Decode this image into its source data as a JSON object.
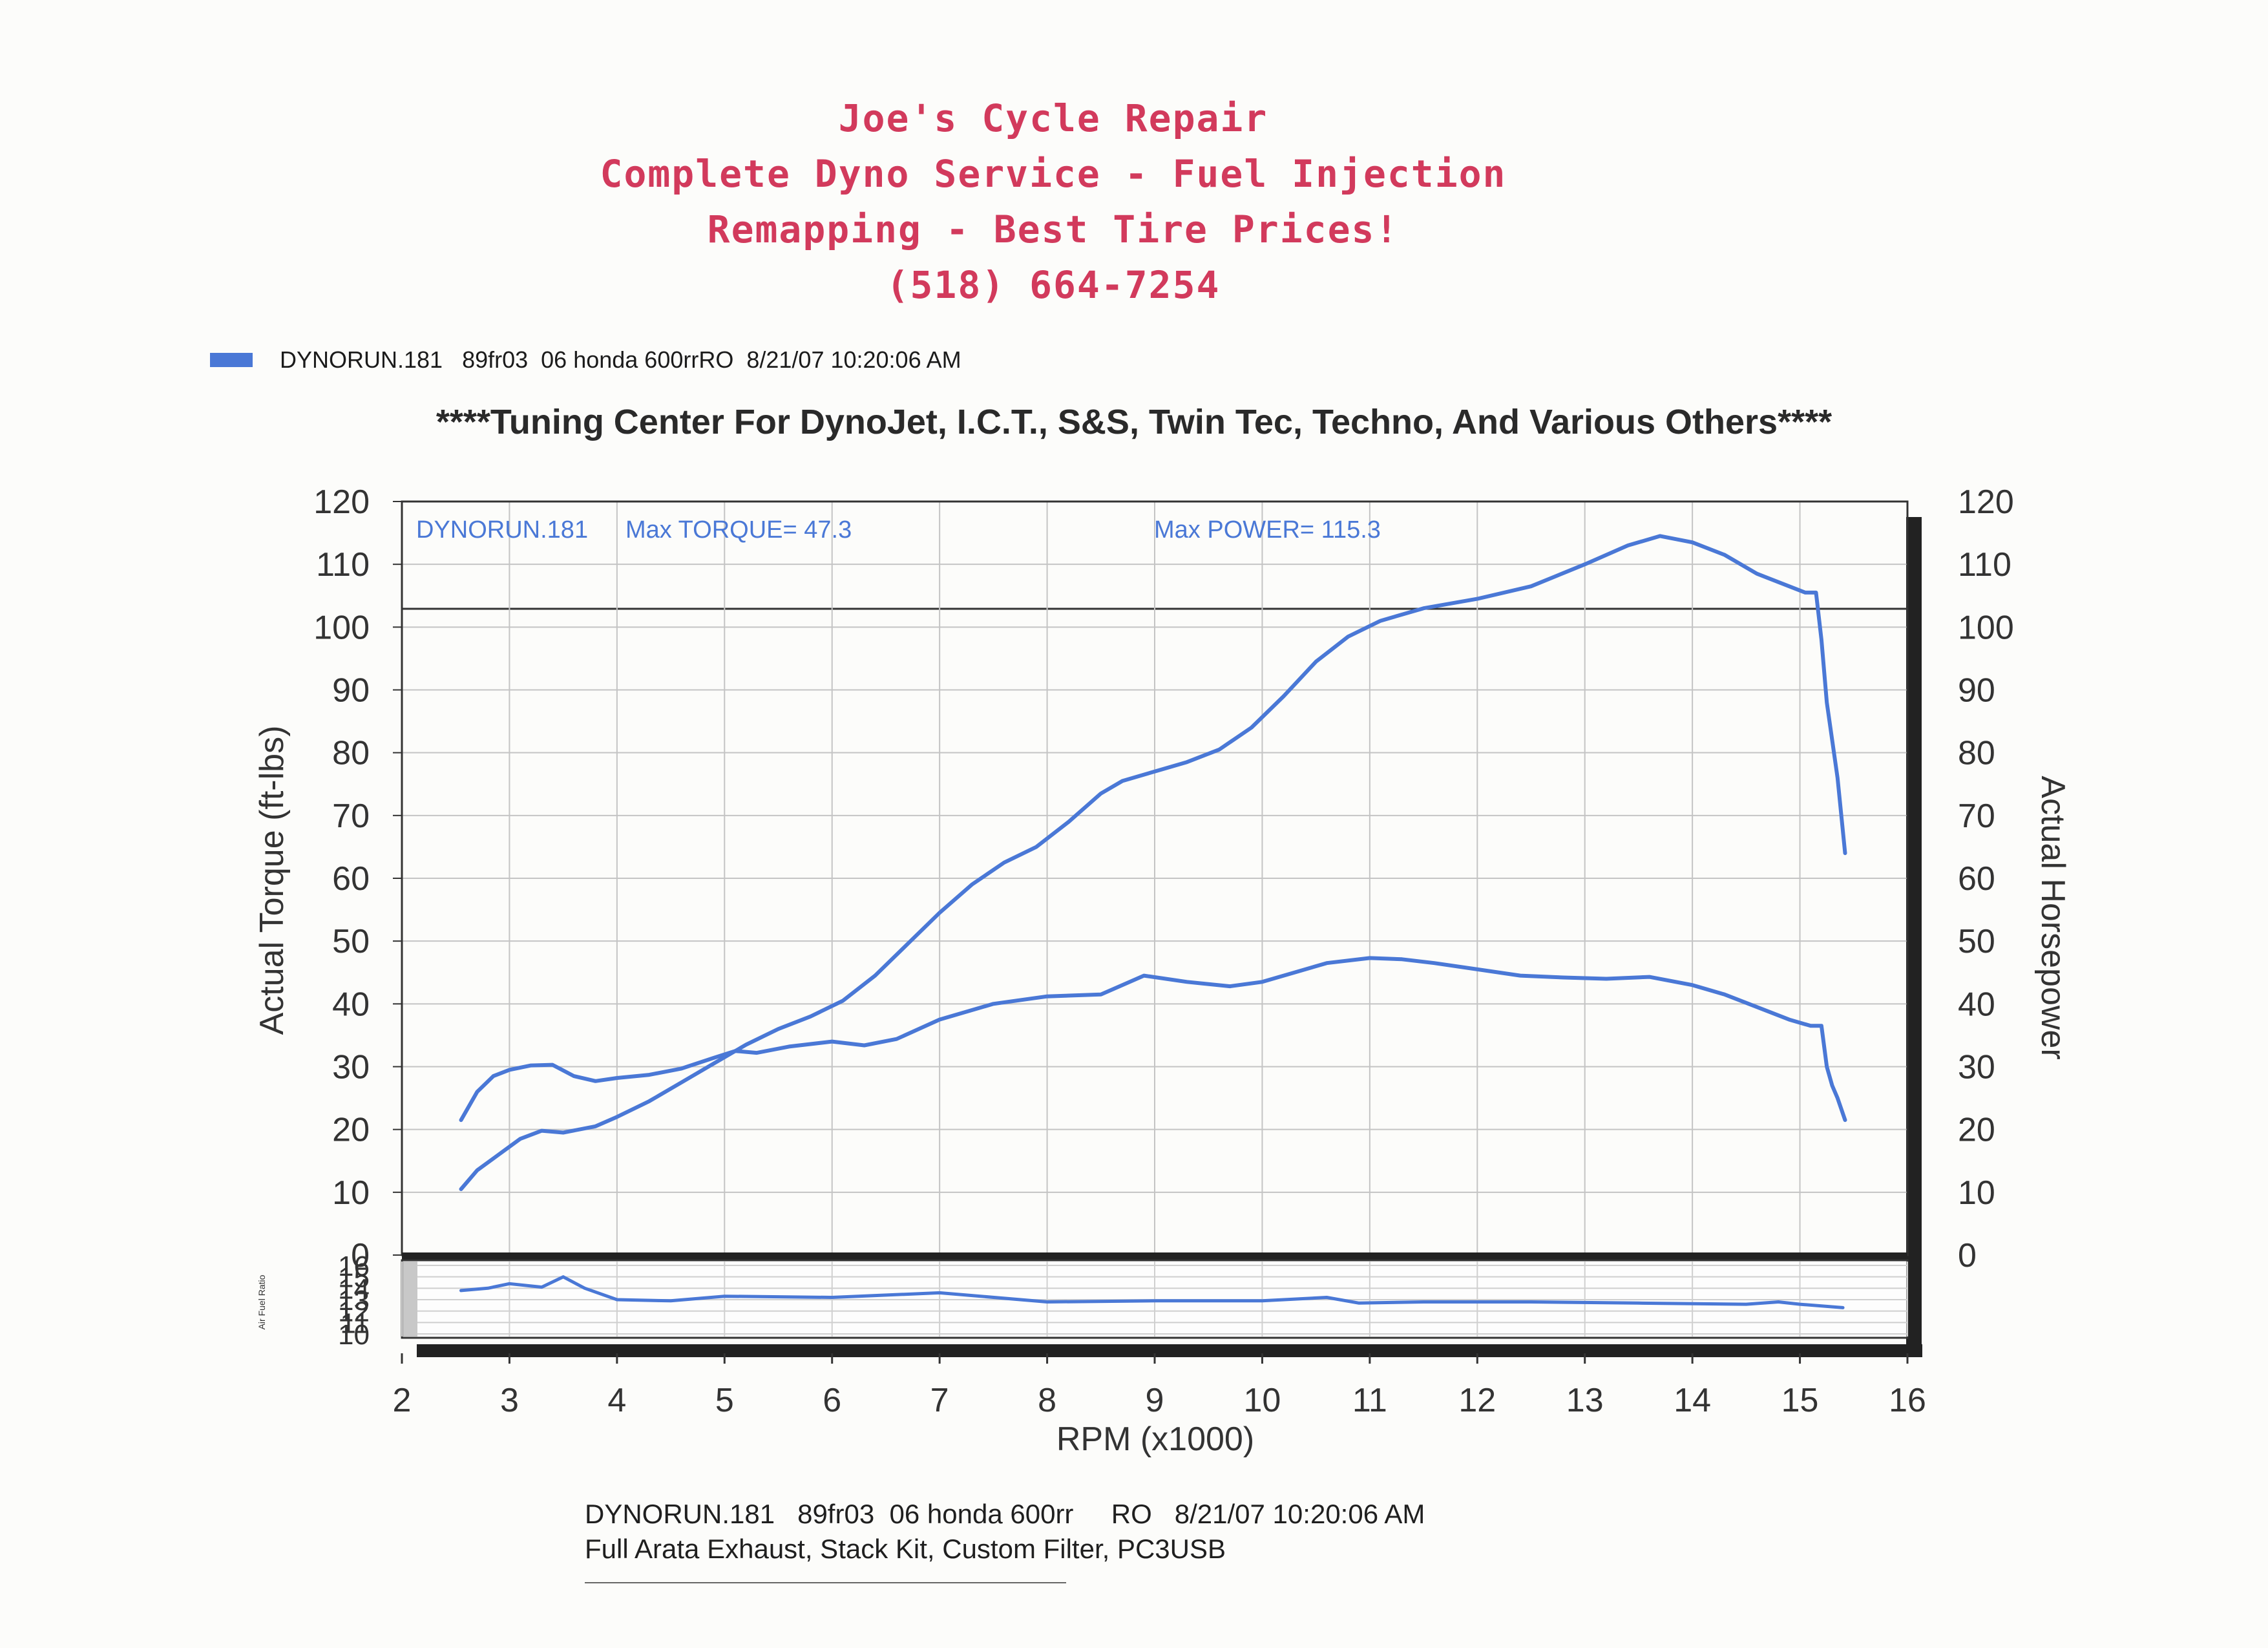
{
  "header": {
    "lines": [
      "Joe's Cycle Repair",
      "Complete Dyno Service - Fuel Injection",
      "Remapping - Best Tire Prices!",
      "(518) 664-7254"
    ],
    "color": "#d23a5c"
  },
  "legend": {
    "text": "DYNORUN.181   89fr03  06 honda 600rrRO  8/21/07 10:20:06 AM",
    "swatch_color": "#4a78d6"
  },
  "banner": "****Tuning Center For DynoJet, I.C.T., S&S, Twin Tec, Techno, And Various Others****",
  "chart_data": {
    "type": "line",
    "xlabel": "RPM (x1000)",
    "ylabel_left": "Actual Torque (ft-lbs)",
    "ylabel_right": "Actual Horsepower",
    "xlim": [
      2,
      16
    ],
    "ylim": [
      0,
      120
    ],
    "x_ticks": [
      2,
      3,
      4,
      5,
      6,
      7,
      8,
      9,
      10,
      11,
      12,
      13,
      14,
      15,
      16
    ],
    "y_ticks": [
      0,
      10,
      20,
      30,
      40,
      50,
      60,
      70,
      80,
      90,
      100,
      110,
      120
    ],
    "grid": true,
    "annotations": {
      "run": "DYNORUN.181",
      "max_torque": "Max TORQUE= 47.3",
      "max_power": "Max POWER= 115.3"
    },
    "line_color": "#4a78d6",
    "series": [
      {
        "id": "torque",
        "x": [
          2.55,
          2.7,
          2.85,
          3.0,
          3.2,
          3.4,
          3.6,
          3.8,
          4.0,
          4.3,
          4.6,
          4.9,
          5.1,
          5.3,
          5.6,
          6.0,
          6.3,
          6.6,
          7.0,
          7.5,
          8.0,
          8.5,
          8.9,
          9.3,
          9.7,
          10.0,
          10.3,
          10.6,
          11.0,
          11.3,
          11.6,
          12.0,
          12.4,
          12.8,
          13.2,
          13.6,
          14.0,
          14.3,
          14.6,
          14.9,
          15.1,
          15.2,
          15.25,
          15.3,
          15.35,
          15.42
        ],
        "y": [
          21.5,
          26.0,
          28.5,
          29.5,
          30.2,
          30.3,
          28.5,
          27.7,
          28.2,
          28.7,
          29.7,
          31.4,
          32.5,
          32.2,
          33.2,
          34.0,
          33.4,
          34.4,
          37.5,
          40.0,
          41.2,
          41.5,
          44.5,
          43.5,
          42.8,
          43.5,
          45.0,
          46.5,
          47.3,
          47.1,
          46.5,
          45.5,
          44.5,
          44.2,
          44.0,
          44.3,
          43.0,
          41.5,
          39.5,
          37.5,
          36.5,
          36.5,
          30.0,
          27.0,
          25.0,
          21.5
        ]
      },
      {
        "id": "horsepower",
        "x": [
          2.55,
          2.7,
          2.9,
          3.1,
          3.3,
          3.5,
          3.8,
          4.0,
          4.3,
          4.6,
          4.9,
          5.2,
          5.5,
          5.8,
          6.1,
          6.4,
          6.7,
          7.0,
          7.3,
          7.6,
          7.9,
          8.2,
          8.5,
          8.7,
          9.0,
          9.3,
          9.6,
          9.9,
          10.2,
          10.5,
          10.8,
          11.1,
          11.5,
          12.0,
          12.5,
          13.0,
          13.4,
          13.7,
          14.0,
          14.3,
          14.6,
          14.9,
          15.05,
          15.15,
          15.2,
          15.25,
          15.3,
          15.35,
          15.42
        ],
        "y": [
          10.5,
          13.5,
          16.0,
          18.5,
          19.8,
          19.5,
          20.5,
          22.0,
          24.5,
          27.5,
          30.5,
          33.5,
          36.0,
          38.0,
          40.5,
          44.5,
          49.5,
          54.5,
          59.0,
          62.5,
          65.0,
          69.0,
          73.5,
          75.5,
          77.0,
          78.5,
          80.5,
          84.0,
          89.0,
          94.5,
          98.5,
          101.0,
          103.0,
          104.5,
          106.5,
          110.0,
          113.0,
          114.5,
          113.5,
          111.5,
          108.5,
          106.5,
          105.5,
          105.5,
          98.0,
          88.0,
          82.0,
          76.0,
          64.0
        ]
      },
      {
        "id": "air-fuel-ratio",
        "x": [
          2.55,
          2.8,
          3.0,
          3.3,
          3.5,
          3.7,
          4.0,
          4.5,
          5.0,
          6.0,
          7.0,
          8.0,
          9.0,
          10.0,
          10.6,
          10.9,
          11.5,
          12.5,
          13.5,
          14.5,
          14.8,
          15.0,
          15.4
        ],
        "y": [
          13.8,
          14.0,
          14.4,
          14.1,
          15.0,
          14.0,
          13.0,
          12.9,
          13.3,
          13.2,
          13.6,
          12.8,
          12.9,
          12.9,
          13.2,
          12.7,
          12.8,
          12.8,
          12.7,
          12.6,
          12.8,
          12.6,
          12.3
        ]
      }
    ],
    "afr_panel": {
      "label": "Air Fuel Ratio",
      "ylim": [
        10,
        16
      ],
      "tick_labels": [
        "10",
        "11",
        "12",
        "13",
        "14",
        "15",
        "16"
      ]
    }
  },
  "footer": {
    "line1": "DYNORUN.181   89fr03  06 honda 600rr     RO   8/21/07 10:20:06 AM",
    "line2": "Full Arata Exhaust, Stack Kit, Custom Filter, PC3USB"
  }
}
